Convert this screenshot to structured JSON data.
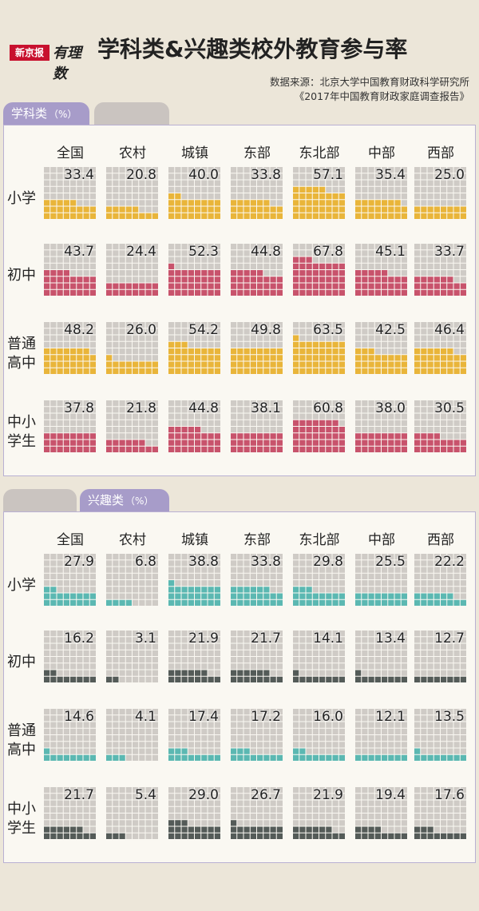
{
  "header": {
    "logo_text": "新京报",
    "logo_script": "有理数",
    "title": "学科类&兴趣类校外教育参与率",
    "source_line1": "数据来源：北京大学中国教育财政科学研究所",
    "source_line2": "《2017年中国教育财政家庭调查报告》"
  },
  "colors": {
    "academic_yellow": "#e9b53a",
    "academic_pink": "#c8536c",
    "interest_teal": "#5bb8b2",
    "interest_dark": "#545b58",
    "empty": "#cfcbc6",
    "tab_active": "#a79cc9",
    "tab_inactive": "#cac4c0"
  },
  "chart_data": [
    {
      "type": "waffle",
      "tab_label": "学科类",
      "unit": "（%）",
      "categories": [
        "全国",
        "农村",
        "城镇",
        "东部",
        "东北部",
        "中部",
        "西部"
      ],
      "series": [
        {
          "name": "小学",
          "lines": [
            "小学"
          ],
          "color": "academic_yellow",
          "values": [
            33.4,
            20.8,
            40.0,
            33.8,
            57.1,
            35.4,
            25.0
          ],
          "labels": [
            "33.4",
            "20.8",
            "40.0",
            "33.8",
            "57.1",
            "35.4",
            "25.0"
          ]
        },
        {
          "name": "初中",
          "lines": [
            "初中"
          ],
          "color": "academic_pink",
          "values": [
            43.7,
            24.4,
            52.3,
            44.8,
            67.8,
            45.1,
            33.7
          ],
          "labels": [
            "43.7",
            "24.4",
            "52.3",
            "44.8",
            "67.8",
            "45.1",
            "33.7"
          ]
        },
        {
          "name": "普通高中",
          "lines": [
            "普通",
            "高中"
          ],
          "color": "academic_yellow",
          "values": [
            48.2,
            26.0,
            54.2,
            49.8,
            63.5,
            42.5,
            46.4
          ],
          "labels": [
            "48.2",
            "26.0",
            "54.2",
            "49.8",
            "63.5",
            "42.5",
            "46.4"
          ]
        },
        {
          "name": "中小学生",
          "lines": [
            "中小",
            "学生"
          ],
          "color": "academic_pink",
          "values": [
            37.8,
            21.8,
            44.8,
            38.1,
            60.8,
            38.0,
            30.5
          ],
          "labels": [
            "37.8",
            "21.8",
            "44.8",
            "38.1",
            "60.8",
            "38.0",
            "30.5"
          ]
        }
      ]
    },
    {
      "type": "waffle",
      "tab_label": "兴趣类",
      "unit": "（%）",
      "categories": [
        "全国",
        "农村",
        "城镇",
        "东部",
        "东北部",
        "中部",
        "西部"
      ],
      "series": [
        {
          "name": "小学",
          "lines": [
            "小学"
          ],
          "color": "interest_teal",
          "values": [
            27.9,
            6.8,
            38.8,
            33.8,
            29.8,
            25.5,
            22.2
          ],
          "labels": [
            "27.9",
            "6.8",
            "38.8",
            "33.8",
            "29.8",
            "25.5",
            "22.2"
          ]
        },
        {
          "name": "初中",
          "lines": [
            "初中"
          ],
          "color": "interest_dark",
          "values": [
            16.2,
            3.1,
            21.9,
            21.7,
            14.1,
            13.4,
            12.7
          ],
          "labels": [
            "16.2",
            "3.1",
            "21.9",
            "21.7",
            "14.1",
            "13.4",
            "12.7"
          ]
        },
        {
          "name": "普通高中",
          "lines": [
            "普通",
            "高中"
          ],
          "color": "interest_teal",
          "values": [
            14.6,
            4.1,
            17.4,
            17.2,
            16.0,
            12.1,
            13.5
          ],
          "labels": [
            "14.6",
            "4.1",
            "17.4",
            "17.2",
            "16.0",
            "12.1",
            "13.5"
          ]
        },
        {
          "name": "中小学生",
          "lines": [
            "中小",
            "学生"
          ],
          "color": "interest_dark",
          "values": [
            21.7,
            5.4,
            29.0,
            26.7,
            21.9,
            19.4,
            17.6
          ],
          "labels": [
            "21.7",
            "5.4",
            "29.0",
            "26.7",
            "21.9",
            "19.4",
            "17.6"
          ]
        }
      ]
    }
  ]
}
